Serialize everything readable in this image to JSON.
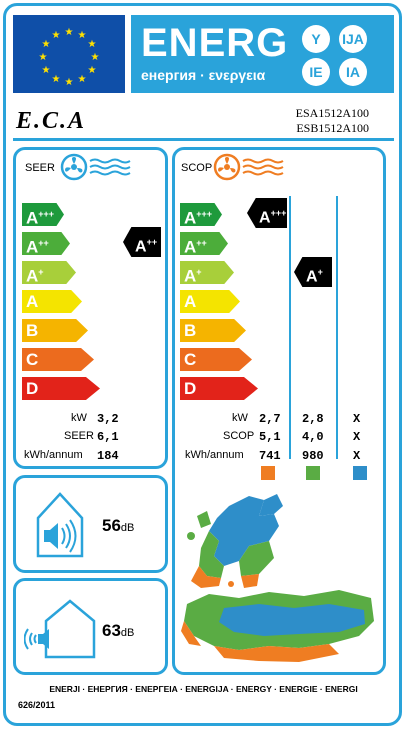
{
  "header": {
    "title": "ENERG",
    "subtitle": "енергия · ενεργεια",
    "circles": [
      "Y",
      "IJA",
      "IE",
      "IA"
    ]
  },
  "brand": "E.C.A",
  "models": [
    "ESA1512A100",
    "ESB1512A100"
  ],
  "seer": {
    "label": "SEER",
    "classes": [
      "A",
      "A",
      "A",
      "A",
      "B",
      "C",
      "D"
    ],
    "class_sups": [
      "+++",
      "++",
      "+",
      "",
      "",
      "",
      ""
    ],
    "class_colors": [
      "#1e9a3c",
      "#4cad3a",
      "#a8cf3a",
      "#f4e400",
      "#f5b400",
      "#ec6b1e",
      "#e2231a"
    ],
    "rating": "A",
    "rating_sup": "++",
    "rows": [
      {
        "label": "kW",
        "value": "3,2"
      },
      {
        "label": "SEER",
        "value": "6,1"
      },
      {
        "label": "kWh/annum",
        "value": "184"
      }
    ]
  },
  "scop": {
    "label": "SCOP",
    "classes": [
      "A",
      "A",
      "A",
      "A",
      "B",
      "C",
      "D"
    ],
    "class_sups": [
      "+++",
      "++",
      "+",
      "",
      "",
      "",
      ""
    ],
    "rating_warm": "A",
    "rating_warm_sup": "+++",
    "rating_avg": "A",
    "rating_avg_sup": "+",
    "rows": [
      {
        "label": "kW",
        "v1": "2,7",
        "v2": "2,8",
        "v3": "X"
      },
      {
        "label": "SCOP",
        "v1": "5,1",
        "v2": "4,0",
        "v3": "X"
      },
      {
        "label": "kWh/annum",
        "v1": "741",
        "v2": "980",
        "v3": "X"
      }
    ],
    "zone_colors": [
      "#ef7d22",
      "#5aac44",
      "#2e8ec9"
    ]
  },
  "noise": {
    "indoor": {
      "value": "56",
      "unit": "dB"
    },
    "outdoor": {
      "value": "63",
      "unit": "dB"
    }
  },
  "footer": "ENERJI · ЕНЕРГИЯ · ΕΝΕΡΓΕΙΑ · ENERGIJA · ENERGY · ENERGIE · ENERGI",
  "regulation": "626/2011"
}
